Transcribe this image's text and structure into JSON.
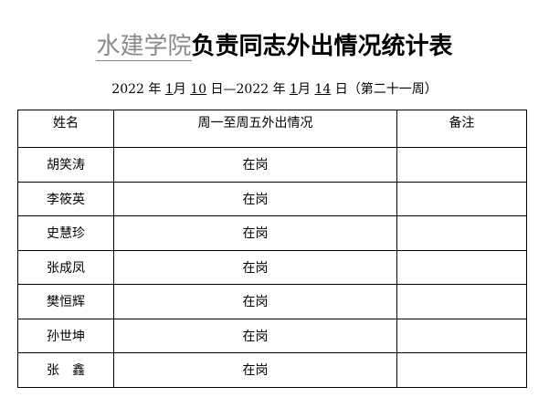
{
  "title": {
    "org": "水建学院",
    "rest": "负责同志外出情况统计表"
  },
  "date": {
    "y1": "2022",
    "l_year": "年",
    "m1": "1",
    "l_month": "月",
    "d1": "10",
    "l_day": "日",
    "sep": "—",
    "y2": "2022",
    "m2": "1",
    "d2": "14",
    "week": "（第二十一周）"
  },
  "table": {
    "headers": [
      "姓名",
      "周一至周五外出情况",
      "备注"
    ],
    "rows": [
      {
        "name": "胡笑涛",
        "status": "在岗",
        "note": ""
      },
      {
        "name": "李筱英",
        "status": "在岗",
        "note": ""
      },
      {
        "name": "史慧珍",
        "status": "在岗",
        "note": ""
      },
      {
        "name": "张成凤",
        "status": "在岗",
        "note": ""
      },
      {
        "name": "樊恒辉",
        "status": "在岗",
        "note": ""
      },
      {
        "name": "孙世坤",
        "status": "在岗",
        "note": ""
      },
      {
        "name": "张　鑫",
        "status": "在岗",
        "note": ""
      }
    ]
  }
}
